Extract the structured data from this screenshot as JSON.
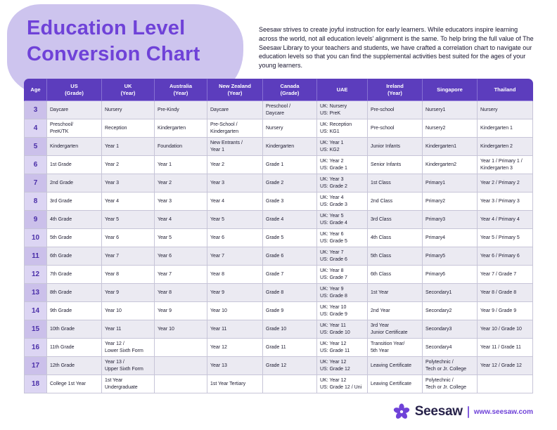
{
  "header": {
    "title_line1": "Education Level",
    "title_line2": "Conversion Chart",
    "intro": "Seesaw strives to create joyful instruction for early learners. While educators inspire learning across the world, not all education levels' alignment is the same. To help bring the full value of The Seesaw Library to your teachers and students, we have crafted a correlation chart to navigate our education levels so that you can find the supplemental activities best suited for the ages of your young learners."
  },
  "table": {
    "headers": [
      {
        "label": "Age",
        "sub": ""
      },
      {
        "label": "US",
        "sub": "(Grade)"
      },
      {
        "label": "UK",
        "sub": "(Year)"
      },
      {
        "label": "Australia",
        "sub": "(Year)"
      },
      {
        "label": "New Zealand",
        "sub": "(Year)"
      },
      {
        "label": "Canada",
        "sub": "(Grade)"
      },
      {
        "label": "UAE",
        "sub": ""
      },
      {
        "label": "Ireland",
        "sub": "(Year)"
      },
      {
        "label": "Singapore",
        "sub": ""
      },
      {
        "label": "Thailand",
        "sub": ""
      }
    ],
    "rows": [
      {
        "age": "3",
        "cells": [
          "Daycare",
          "Nursery",
          "Pre-Kindy",
          "Daycare",
          "Preschool /\nDaycare",
          "UK: Nursery\nUS: PreK",
          "Pre-school",
          "Nursery1",
          "Nursery"
        ]
      },
      {
        "age": "4",
        "cells": [
          "Preschool/\nPreK/TK",
          "Reception",
          "Kindergarten",
          "Pre-School /\nKindergarten",
          "Nursery",
          "UK: Reception\nUS: KG1",
          "Pre-school",
          "Nursery2",
          "Kindergarten 1"
        ]
      },
      {
        "age": "5",
        "cells": [
          "Kindergarten",
          "Year 1",
          "Foundation",
          "New Entrants /\nYear 1",
          "Kindergarten",
          "UK: Year 1\nUS: KG2",
          "Junior Infants",
          "Kindergarten1",
          "Kindergarten 2"
        ]
      },
      {
        "age": "6",
        "cells": [
          "1st Grade",
          "Year 2",
          "Year 1",
          "Year 2",
          "Grade 1",
          "UK: Year 2\nUS: Grade 1",
          "Senior Infants",
          "Kindergarten2",
          "Year 1 / Primary 1 /\nKindergarten 3"
        ]
      },
      {
        "age": "7",
        "cells": [
          "2nd Grade",
          "Year 3",
          "Year 2",
          "Year 3",
          "Grade 2",
          "UK: Year 3\nUS: Grade 2",
          "1st Class",
          "Primary1",
          "Year 2 / Primary 2"
        ]
      },
      {
        "age": "8",
        "cells": [
          "3rd Grade",
          "Year 4",
          "Year 3",
          "Year 4",
          "Grade 3",
          "UK: Year 4\nUS: Grade 3",
          "2nd Class",
          "Primary2",
          "Year 3 / Primary 3"
        ]
      },
      {
        "age": "9",
        "cells": [
          "4th Grade",
          "Year 5",
          "Year 4",
          "Year 5",
          "Grade 4",
          "UK: Year 5\nUS: Grade 4",
          "3rd Class",
          "Primary3",
          "Year 4 / Primary 4"
        ]
      },
      {
        "age": "10",
        "cells": [
          "5th Grade",
          "Year 6",
          "Year 5",
          "Year 6",
          "Grade 5",
          "UK: Year 6\nUS: Grade 5",
          "4th Class",
          "Primary4",
          "Year 5 / Primary 5"
        ]
      },
      {
        "age": "11",
        "cells": [
          "6th Grade",
          "Year 7",
          "Year 6",
          "Year 7",
          "Grade 6",
          "UK: Year 7\nUS: Grade 6",
          "5th Class",
          "Primary5",
          "Year 6 / Primary 6"
        ]
      },
      {
        "age": "12",
        "cells": [
          "7th Grade",
          "Year 8",
          "Year 7",
          "Year 8",
          "Grade 7",
          "UK: Year 8\nUS: Grade 7",
          "6th Class",
          "Primary6",
          "Year 7 / Grade 7"
        ]
      },
      {
        "age": "13",
        "cells": [
          "8th Grade",
          "Year 9",
          "Year 8",
          "Year 9",
          "Grade 8",
          "UK: Year 9\nUS: Grade 8",
          "1st Year",
          "Secondary1",
          "Year 8 / Grade 8"
        ]
      },
      {
        "age": "14",
        "cells": [
          "9th Grade",
          "Year 10",
          "Year 9",
          "Year 10",
          "Grade 9",
          "UK: Year 10\nUS: Grade 9",
          "2nd Year",
          "Secondary2",
          "Year 9 / Grade 9"
        ]
      },
      {
        "age": "15",
        "cells": [
          "10th Grade",
          "Year 11",
          "Year 10",
          "Year 11",
          "Grade 10",
          "UK: Year 11\nUS: Grade 10",
          "3rd Year\nJunior Certificate",
          "Secondary3",
          "Year 10 / Grade 10"
        ]
      },
      {
        "age": "16",
        "cells": [
          "11th Grade",
          "Year 12 /\nLower Sixth Form",
          "",
          "Year 12",
          "Grade 11",
          "UK: Year 12\nUS: Grade 11",
          "Transition Year/\n5th Year",
          "Secondary4",
          "Year 11 / Grade 11"
        ]
      },
      {
        "age": "17",
        "cells": [
          "12th Grade",
          "Year 13 /\nUpper Sixth Form",
          "",
          "Year 13",
          "Grade 12",
          "UK: Year 12\nUS: Grade 12",
          "Leaving Certificate",
          "Polytechnic /\nTech or Jr. College",
          "Year 12 / Grade 12"
        ]
      },
      {
        "age": "18",
        "cells": [
          "College 1st Year",
          "1st Year\nUndergraduate",
          "",
          "1st Year Tertiary",
          "",
          "UK: Year 12\nUS: Grade 12 / Uni",
          "Leaving Certificate",
          "Polytechnic /\nTech or Jr. College",
          ""
        ]
      }
    ]
  },
  "footer": {
    "brand": "Seesaw",
    "url": "www.seesaw.com"
  },
  "colors": {
    "brand_purple": "#6f42d8",
    "header_bg": "#5c3dbd",
    "age_cell_bg": "#cbc0ea",
    "age_cell_bg_alt": "#dcd5f3",
    "row_alt_bg": "#ebeaf2",
    "blob": "#cdc4ee"
  }
}
